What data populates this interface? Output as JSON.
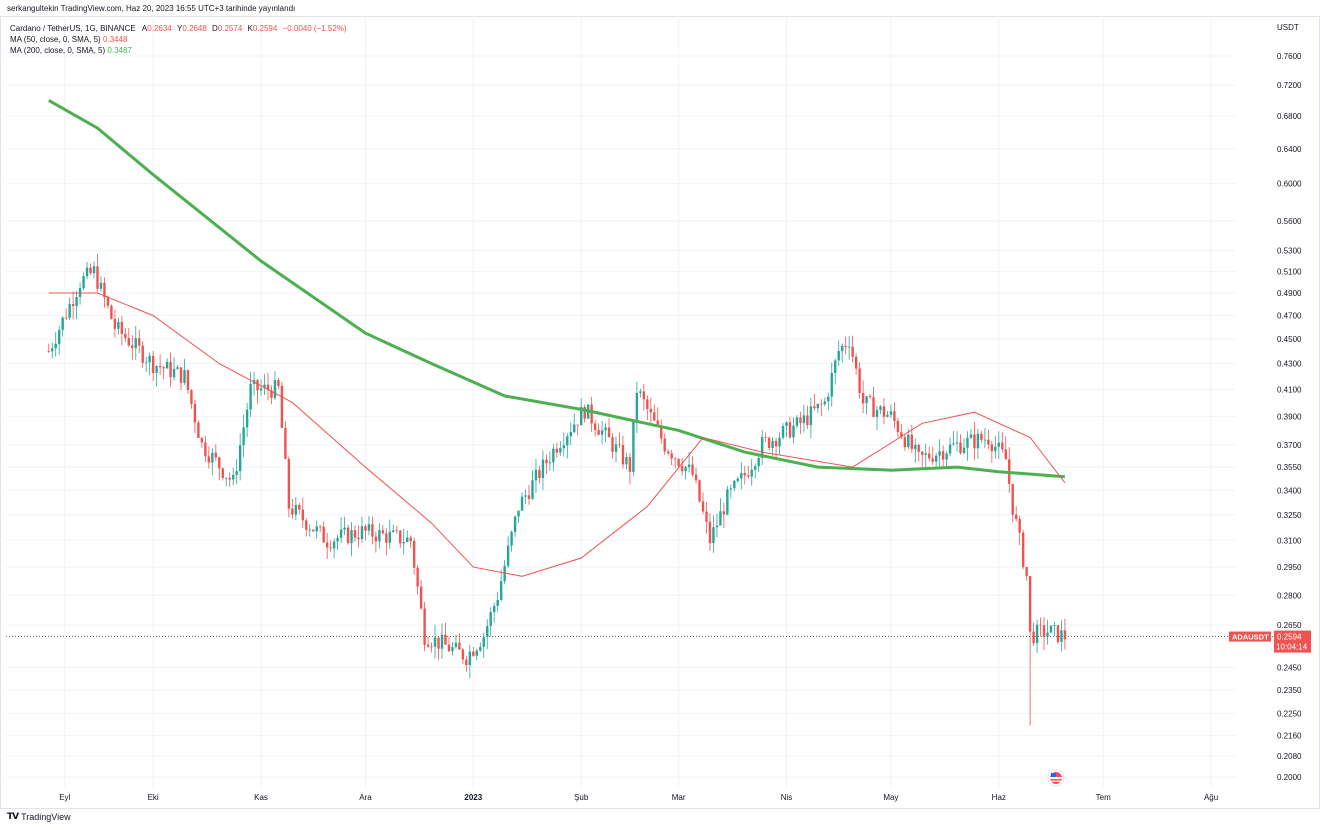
{
  "header": {
    "publish_note": "serkangultekin TradingView.com, Haz 20, 2023 16:55 UTC+3 tarihinde yayınlandı"
  },
  "legend": {
    "symbol": "Cardano / TetherUS, 1G, BINANCE",
    "a_label": "A",
    "a_value": "0.2634",
    "y_label": "Y",
    "y_value": "0.2648",
    "d_label": "D",
    "d_value": "0.2574",
    "k_label": "K",
    "k_value": "0.2594",
    "change": "−0.0040 (−1.52%)",
    "ma50_label": "MA (50, close, 0, SMA, 5)",
    "ma50_value": "0.3448",
    "ma200_label": "MA (200, close, 0, SMA, 5)",
    "ma200_value": "0.3487"
  },
  "price_axis": {
    "currency": "USDT",
    "ticks": [
      "0.7600",
      "0.7200",
      "0.6800",
      "0.6400",
      "0.6000",
      "0.5600",
      "0.5300",
      "0.5100",
      "0.4900",
      "0.4700",
      "0.4500",
      "0.4300",
      "0.4100",
      "0.3900",
      "0.3700",
      "0.3550",
      "0.3400",
      "0.3250",
      "0.3100",
      "0.2950",
      "0.2800",
      "0.2650",
      "0.2450",
      "0.2350",
      "0.2250",
      "0.2160",
      "0.2080",
      "0.2000"
    ]
  },
  "time_axis": {
    "ticks": [
      "Eyl",
      "Eki",
      "Kas",
      "Ara",
      "2023",
      "Şub",
      "Mar",
      "Nis",
      "May",
      "Haz",
      "Tem",
      "Ağu"
    ]
  },
  "last_price": {
    "symbol_label": "ADAUSDT",
    "price": "0.2594",
    "countdown": "10:04:14"
  },
  "colors": {
    "up": "#26a69a",
    "down": "#ef5350",
    "ma50": "#ef5350",
    "ma200": "#4caf50"
  },
  "branding": {
    "name": "TradingView"
  },
  "chart_data": {
    "type": "candlestick",
    "scale": "log",
    "ylim": [
      0.2,
      0.76
    ],
    "x_range": [
      "2022-09-01",
      "2023-08-31"
    ],
    "series": [
      {
        "name": "ADAUSDT",
        "kind": "ohlc",
        "keypoints": [
          {
            "date": "2022-09-01",
            "close": 0.44
          },
          {
            "date": "2022-09-10",
            "close": 0.5
          },
          {
            "date": "2022-09-14",
            "close": 0.51
          },
          {
            "date": "2022-09-20",
            "close": 0.46
          },
          {
            "date": "2022-10-01",
            "close": 0.43
          },
          {
            "date": "2022-10-10",
            "close": 0.42
          },
          {
            "date": "2022-10-15",
            "close": 0.37
          },
          {
            "date": "2022-10-24",
            "close": 0.345
          },
          {
            "date": "2022-10-29",
            "close": 0.41
          },
          {
            "date": "2022-11-06",
            "close": 0.41
          },
          {
            "date": "2022-11-09",
            "close": 0.33
          },
          {
            "date": "2022-11-20",
            "close": 0.31
          },
          {
            "date": "2022-11-30",
            "close": 0.315
          },
          {
            "date": "2022-12-14",
            "close": 0.31
          },
          {
            "date": "2022-12-18",
            "close": 0.26
          },
          {
            "date": "2022-12-30",
            "close": 0.25
          },
          {
            "date": "2023-01-04",
            "close": 0.26
          },
          {
            "date": "2023-01-08",
            "close": 0.28
          },
          {
            "date": "2023-01-14",
            "close": 0.33
          },
          {
            "date": "2023-01-25",
            "close": 0.37
          },
          {
            "date": "2023-02-02",
            "close": 0.395
          },
          {
            "date": "2023-02-10",
            "close": 0.37
          },
          {
            "date": "2023-02-15",
            "close": 0.355
          },
          {
            "date": "2023-02-17",
            "close": 0.41
          },
          {
            "date": "2023-02-25",
            "close": 0.37
          },
          {
            "date": "2023-03-05",
            "close": 0.35
          },
          {
            "date": "2023-03-10",
            "close": 0.31
          },
          {
            "date": "2023-03-15",
            "close": 0.335
          },
          {
            "date": "2023-03-20",
            "close": 0.35
          },
          {
            "date": "2023-03-25",
            "close": 0.37
          },
          {
            "date": "2023-04-05",
            "close": 0.385
          },
          {
            "date": "2023-04-12",
            "close": 0.4
          },
          {
            "date": "2023-04-16",
            "close": 0.44
          },
          {
            "date": "2023-04-19",
            "close": 0.45
          },
          {
            "date": "2023-04-23",
            "close": 0.4
          },
          {
            "date": "2023-05-01",
            "close": 0.39
          },
          {
            "date": "2023-05-09",
            "close": 0.36
          },
          {
            "date": "2023-05-20",
            "close": 0.37
          },
          {
            "date": "2023-05-29",
            "close": 0.375
          },
          {
            "date": "2023-06-03",
            "close": 0.36
          },
          {
            "date": "2023-06-05",
            "close": 0.33
          },
          {
            "date": "2023-06-09",
            "close": 0.29
          },
          {
            "date": "2023-06-10",
            "close": 0.26
          },
          {
            "date": "2023-06-15",
            "close": 0.262
          },
          {
            "date": "2023-06-20",
            "close": 0.2594
          }
        ]
      },
      {
        "name": "MA (50, close, 0, SMA, 5)",
        "kind": "line",
        "points": [
          {
            "date": "2022-09-01",
            "value": 0.49
          },
          {
            "date": "2022-09-15",
            "value": 0.49
          },
          {
            "date": "2022-10-01",
            "value": 0.47
          },
          {
            "date": "2022-10-20",
            "value": 0.43
          },
          {
            "date": "2022-11-10",
            "value": 0.4
          },
          {
            "date": "2022-12-01",
            "value": 0.355
          },
          {
            "date": "2022-12-20",
            "value": 0.32
          },
          {
            "date": "2023-01-01",
            "value": 0.295
          },
          {
            "date": "2023-01-15",
            "value": 0.29
          },
          {
            "date": "2023-02-01",
            "value": 0.3
          },
          {
            "date": "2023-02-20",
            "value": 0.33
          },
          {
            "date": "2023-03-08",
            "value": 0.375
          },
          {
            "date": "2023-03-25",
            "value": 0.365
          },
          {
            "date": "2023-04-20",
            "value": 0.355
          },
          {
            "date": "2023-05-10",
            "value": 0.385
          },
          {
            "date": "2023-05-25",
            "value": 0.393
          },
          {
            "date": "2023-06-10",
            "value": 0.375
          },
          {
            "date": "2023-06-20",
            "value": 0.3448
          }
        ]
      },
      {
        "name": "MA (200, close, 0, SMA, 5)",
        "kind": "line",
        "points": [
          {
            "date": "2022-09-01",
            "value": 0.7
          },
          {
            "date": "2022-09-15",
            "value": 0.665
          },
          {
            "date": "2022-10-01",
            "value": 0.61
          },
          {
            "date": "2022-11-01",
            "value": 0.52
          },
          {
            "date": "2022-12-01",
            "value": 0.455
          },
          {
            "date": "2022-12-20",
            "value": 0.43
          },
          {
            "date": "2023-01-10",
            "value": 0.405
          },
          {
            "date": "2023-02-01",
            "value": 0.395
          },
          {
            "date": "2023-03-01",
            "value": 0.38
          },
          {
            "date": "2023-03-20",
            "value": 0.365
          },
          {
            "date": "2023-04-10",
            "value": 0.355
          },
          {
            "date": "2023-05-01",
            "value": 0.353
          },
          {
            "date": "2023-05-20",
            "value": 0.355
          },
          {
            "date": "2023-06-01",
            "value": 0.352
          },
          {
            "date": "2023-06-20",
            "value": 0.3487
          }
        ]
      }
    ],
    "current_price_line": 0.2594,
    "grid": true,
    "price_axis_position": "right"
  }
}
